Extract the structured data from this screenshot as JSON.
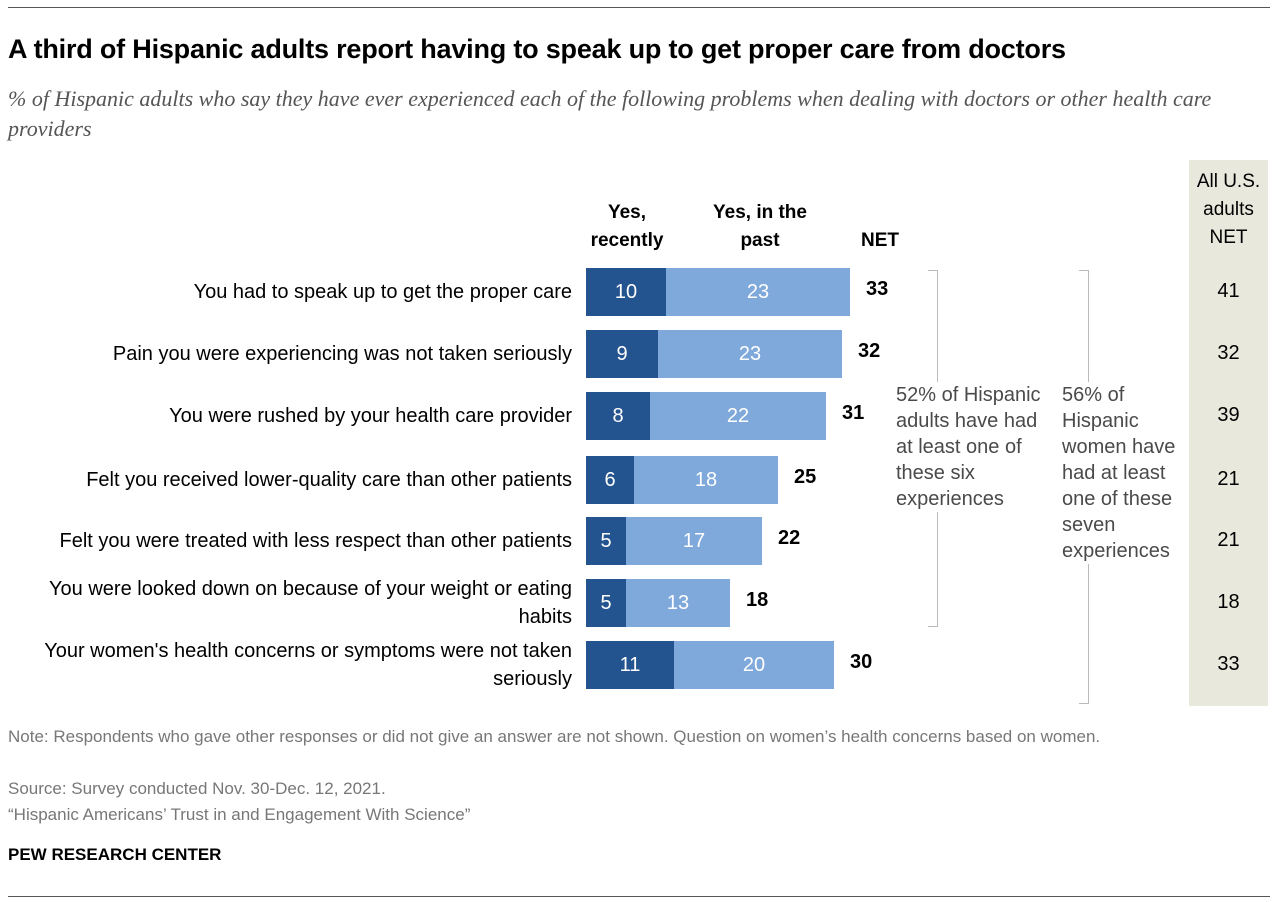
{
  "title": "A third of Hispanic adults report having to speak up to get proper care from doctors",
  "subtitle": "% of Hispanic adults who say they have ever experienced each of the following problems when dealing with doctors or other health care providers",
  "chart_data": {
    "type": "bar",
    "stacked": true,
    "orientation": "horizontal",
    "categories": [
      "You had to speak up to get the proper care",
      "Pain you were experiencing was not taken seriously",
      "You were rushed by your health care provider",
      "Felt you received lower-quality care than other patients",
      "Felt you were treated with less respect than other patients",
      "You were looked down on because of your weight or eating habits",
      "Your women's health concerns or symptoms were not taken seriously"
    ],
    "series": [
      {
        "name": "Yes, recently",
        "values": [
          10,
          9,
          8,
          6,
          5,
          5,
          11
        ],
        "color": "#24548f"
      },
      {
        "name": "Yes, in the past",
        "values": [
          23,
          23,
          22,
          18,
          17,
          13,
          20
        ],
        "color": "#7fa8db"
      }
    ],
    "net_label": "NET",
    "net": [
      33,
      32,
      31,
      25,
      22,
      18,
      30
    ],
    "us_label": "All U.S. adults NET",
    "us_net": [
      41,
      32,
      39,
      21,
      21,
      18,
      33
    ],
    "us_column_color": "#e8e8dc",
    "annotations": [
      "52% of Hispanic adults have had at least one of these six experiences",
      "56% of Hispanic women have had at least one of these seven experiences"
    ]
  },
  "notes": {
    "note": "Note: Respondents who gave other responses or did not give an answer are not shown. Question on women’s health concerns based on women.",
    "source": "Source: Survey conducted Nov. 30-Dec. 12, 2021.",
    "report": "“Hispanic Americans’ Trust in and Engagement With Science”",
    "org": "PEW RESEARCH CENTER"
  }
}
